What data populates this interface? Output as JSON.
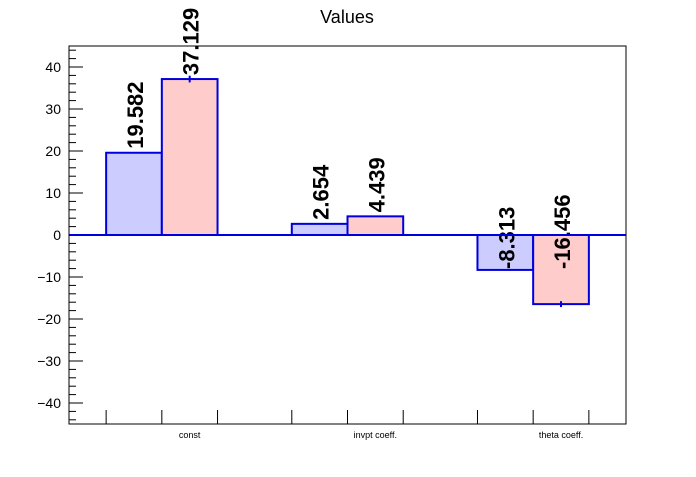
{
  "chart_data": {
    "type": "bar",
    "title": "Values",
    "xlabel": "",
    "ylabel": "",
    "categories": [
      "const",
      "invpt coeff.",
      "theta coeff."
    ],
    "ylim": [
      -45,
      45
    ],
    "yticks": [
      -40,
      -30,
      -20,
      -10,
      0,
      10,
      20,
      30,
      40
    ],
    "grid": false,
    "legend": "none",
    "series": [
      {
        "values": [
          19.582,
          2.654,
          -8.313
        ],
        "labels": [
          "19.582",
          "2.654",
          "-8.313"
        ],
        "errors": [
          0,
          0,
          0
        ],
        "fill": "#ccccff",
        "stroke": "#0000dd"
      },
      {
        "values": [
          37.129,
          4.439,
          -16.456
        ],
        "labels": [
          "37.129",
          "4.439",
          "-16.456"
        ],
        "errors": [
          0.8,
          0,
          0.7
        ],
        "fill": "#ffcccc",
        "stroke": "#0000dd"
      }
    ],
    "zero_line_color": "#0000dd"
  }
}
